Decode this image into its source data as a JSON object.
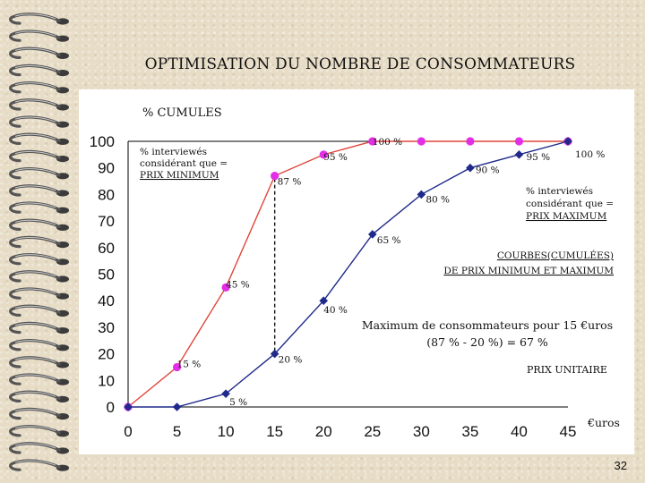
{
  "slide": {
    "title": "OPTIMISATION DU NOMBRE DE CONSOMMATEURS",
    "page_number": "32"
  },
  "colors": {
    "min_series": "#e0453a",
    "min_marker": "#e22fe6",
    "max_series": "#1f2a8a",
    "max_marker": "#1f2a8a",
    "axis": "#000000",
    "background": "#e7dcc6",
    "panel": "#ffffff"
  },
  "chart_data": {
    "type": "line",
    "title": "",
    "ylabel": "% CUMULES",
    "xlabel": "€uros",
    "xlim": [
      0,
      45
    ],
    "ylim": [
      0,
      100
    ],
    "grid": false,
    "xticks": [
      0,
      5,
      10,
      15,
      20,
      25,
      30,
      35,
      40,
      45
    ],
    "yticks": [
      0,
      10,
      20,
      30,
      40,
      50,
      60,
      70,
      80,
      90,
      100
    ],
    "series": [
      {
        "name": "PRIX MINIMUM",
        "legend_text": [
          "% interviewés",
          "considérant que =",
          "PRIX MINIMUM"
        ],
        "x": [
          0,
          5,
          10,
          15,
          20,
          25,
          30,
          35,
          40,
          45
        ],
        "values": [
          0,
          15,
          45,
          87,
          95,
          100,
          100,
          100,
          100,
          100
        ],
        "labels": [
          "",
          "15 %",
          "45 %",
          "87 %",
          "95 %",
          "100 %",
          "",
          "",
          "",
          ""
        ]
      },
      {
        "name": "PRIX MAXIMUM",
        "legend_text": [
          "% interviewés",
          "considérant que =",
          "PRIX MAXIMUM"
        ],
        "x": [
          0,
          5,
          10,
          15,
          20,
          25,
          30,
          35,
          40,
          45
        ],
        "values": [
          0,
          0,
          5,
          20,
          40,
          65,
          80,
          90,
          95,
          100
        ],
        "labels": [
          "",
          "",
          "5 %",
          "20 %",
          "40 %",
          "65 %",
          "80 %",
          "90 %",
          "95 %",
          "100 %"
        ]
      }
    ],
    "annotations": {
      "curves_title": [
        "COURBES(CUMULÉES)",
        "DE PRIX MINIMUM ET MAXIMUM"
      ],
      "max_consumers": [
        "Maximum de consommateurs pour 15 €uros",
        "(87 % - 20 %) = 67 %"
      ],
      "unit_price_label": "PRIX UNITAIRE",
      "optimum_x": 15,
      "optimum_from": 87,
      "optimum_to": 20
    }
  }
}
